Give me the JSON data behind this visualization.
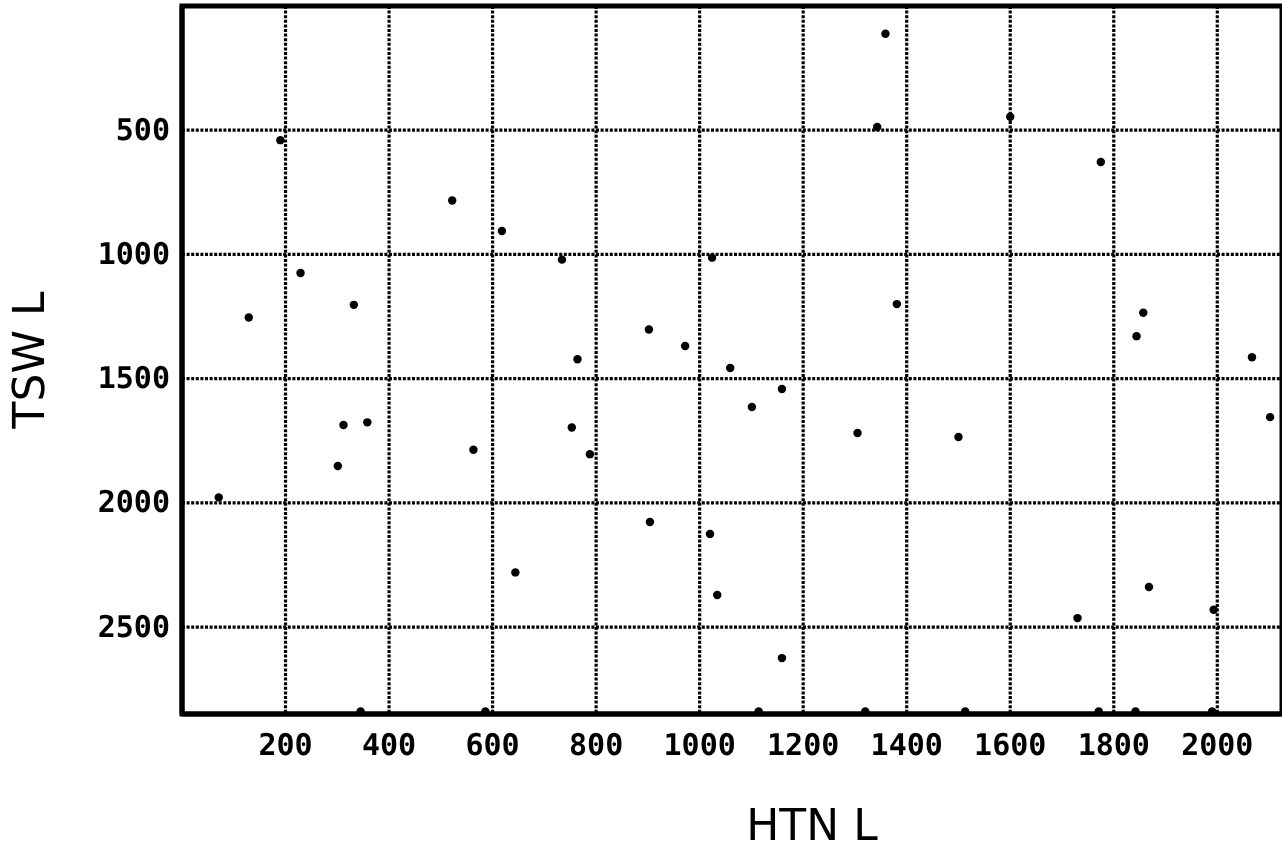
{
  "chart_data": {
    "type": "scatter",
    "xlabel": "HTN L",
    "ylabel": "TSW L",
    "xlim": [
      0,
      2125
    ],
    "ylim": [
      2850,
      0
    ],
    "xticks": [
      200,
      400,
      600,
      800,
      1000,
      1200,
      1400,
      1600,
      1800,
      2000
    ],
    "yticks": [
      500,
      1000,
      1500,
      2000,
      2500
    ],
    "grid": true,
    "marker": "circle",
    "series": [
      {
        "color": "#000000",
        "x": [
          190,
          522,
          618,
          734,
          1024,
          229,
          129,
          332,
          902,
          972,
          764,
          1359,
          1343,
          1600,
          1775,
          1381,
          1857,
          1844,
          2067,
          1059,
          312,
          358,
          301,
          563,
          753,
          788,
          71,
          904,
          1020,
          644,
          1034,
          345,
          586,
          1159,
          1101,
          1305,
          1500,
          2102,
          1868,
          1730,
          1993,
          1159,
          1114,
          1320,
          1513,
          1771,
          1842,
          1990
        ],
        "values": [
          540,
          783,
          906,
          1021,
          1013,
          1075,
          1254,
          1203,
          1302,
          1369,
          1422,
          112,
          487,
          446,
          628,
          1200,
          1235,
          1329,
          1414,
          1457,
          1687,
          1676,
          1852,
          1786,
          1697,
          1804,
          1978,
          2077,
          2125,
          2280,
          2371,
          2840,
          2840,
          1542,
          1614,
          1719,
          1735,
          1655,
          2339,
          2464,
          2430,
          2625,
          2840,
          2840,
          2840,
          2840,
          2840,
          2840
        ]
      }
    ]
  }
}
